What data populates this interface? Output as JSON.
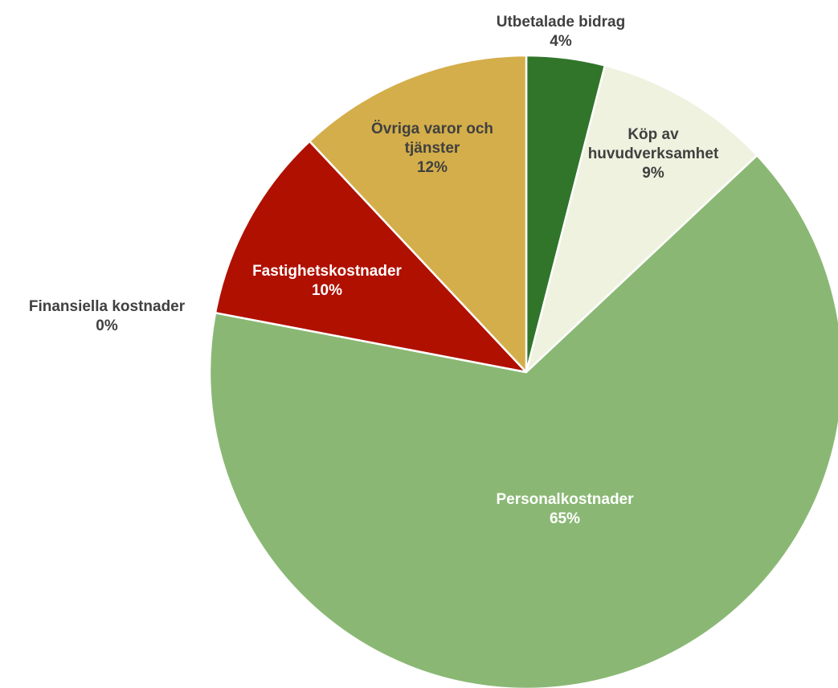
{
  "chart_data": {
    "type": "pie",
    "categories": [
      "Utbetalade bidrag",
      "Köp av huvudverksamhet",
      "Personalkostnader",
      "Finansiella kostnader",
      "Fastighetskostnader",
      "Övriga varor och tjänster"
    ],
    "values": [
      4,
      9,
      65,
      0,
      10,
      12
    ],
    "value_labels": [
      "4%",
      "9%",
      "65%",
      "0%",
      "10%",
      "12%"
    ],
    "colors": [
      "#31752a",
      "#eef2de",
      "#8ab874",
      "#7f7f7f",
      "#b01000",
      "#d4ae4a"
    ]
  }
}
